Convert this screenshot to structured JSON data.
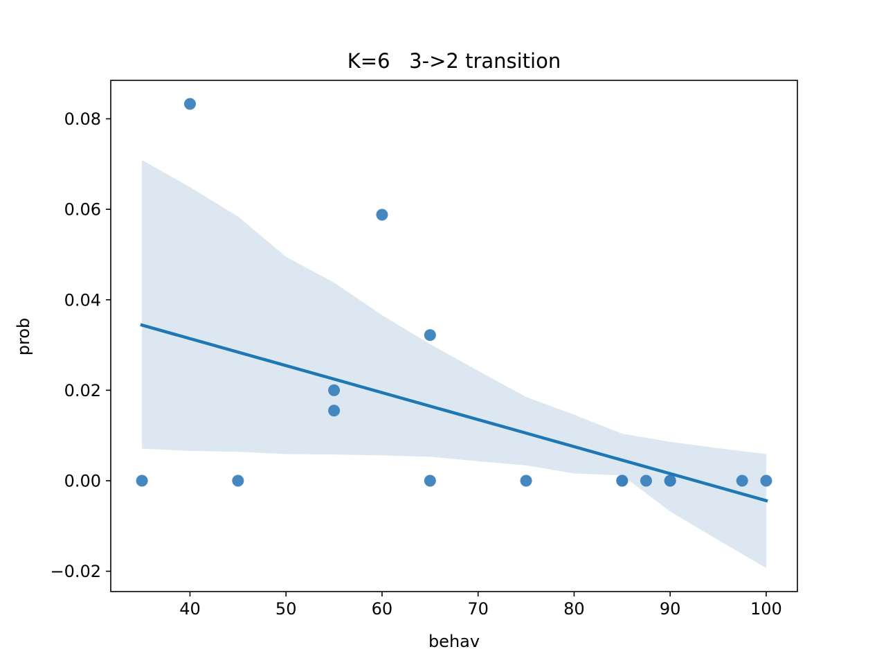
{
  "chart_data": {
    "type": "scatter",
    "title": "K=6   3->2 transition",
    "xlabel": "behav",
    "ylabel": "prob",
    "xlim": [
      31.75,
      103.25
    ],
    "ylim": [
      -0.0245,
      0.0885
    ],
    "xticks": [
      40,
      50,
      60,
      70,
      80,
      90,
      100
    ],
    "yticks": [
      -0.02,
      0.0,
      0.02,
      0.04,
      0.06,
      0.08
    ],
    "xtick_labels": [
      "40",
      "50",
      "60",
      "70",
      "80",
      "90",
      "100"
    ],
    "ytick_labels": [
      "−0.02",
      "0.00",
      "0.02",
      "0.04",
      "0.06",
      "0.08"
    ],
    "grid": false,
    "colors": {
      "points": "#3b82bd",
      "regression_line": "#1f77b4",
      "confidence_band": "#dce7f2"
    },
    "points": [
      {
        "x": 35,
        "y": 0.0
      },
      {
        "x": 40,
        "y": 0.0833
      },
      {
        "x": 45,
        "y": 0.0
      },
      {
        "x": 55,
        "y": 0.02
      },
      {
        "x": 55,
        "y": 0.0155
      },
      {
        "x": 60,
        "y": 0.0588
      },
      {
        "x": 65,
        "y": 0.0322
      },
      {
        "x": 65,
        "y": 0.0
      },
      {
        "x": 75,
        "y": 0.0
      },
      {
        "x": 85,
        "y": 0.0
      },
      {
        "x": 85,
        "y": 0.0
      },
      {
        "x": 87.5,
        "y": 0.0
      },
      {
        "x": 90,
        "y": 0.0
      },
      {
        "x": 90,
        "y": 0.0
      },
      {
        "x": 97.5,
        "y": 0.0
      },
      {
        "x": 100,
        "y": 0.0
      }
    ],
    "regression_line": {
      "x": [
        35,
        100
      ],
      "y": [
        0.0344,
        -0.0044
      ]
    },
    "confidence_band": {
      "x": [
        35,
        40,
        45,
        50,
        55,
        60,
        65,
        70,
        75,
        80,
        85,
        90,
        95,
        100
      ],
      "upper": [
        0.0709,
        0.0649,
        0.0584,
        0.0495,
        0.0438,
        0.0366,
        0.0302,
        0.0243,
        0.0185,
        0.0146,
        0.0104,
        0.0086,
        0.0072,
        0.0059
      ],
      "lower": [
        0.0071,
        0.0066,
        0.0064,
        0.0059,
        0.0058,
        0.0056,
        0.0053,
        0.0043,
        0.0034,
        0.0016,
        0.0012,
        -0.0068,
        -0.0131,
        -0.0193
      ]
    }
  }
}
